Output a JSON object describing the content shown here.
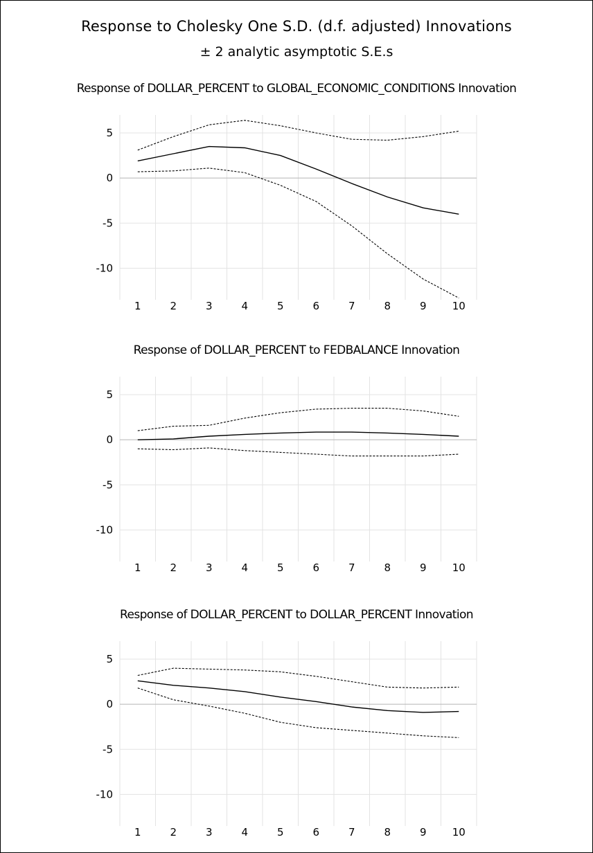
{
  "title": "Response to Cholesky One S.D. (d.f. adjusted) Innovations",
  "subtitle": "± 2 analytic asymptotic S.E.s",
  "chart_data": [
    {
      "type": "line",
      "title": "Response of DOLLAR_PERCENT to GLOBAL_ECONOMIC_CONDITIONS Innovation",
      "x": [
        1,
        2,
        3,
        4,
        5,
        6,
        7,
        8,
        9,
        10
      ],
      "ylim": [
        -13.5,
        7
      ],
      "yticks": [
        5,
        0,
        -5,
        -10
      ],
      "grid": true,
      "series": [
        {
          "values": [
            1.9,
            2.7,
            3.5,
            3.35,
            2.5,
            1.0,
            -0.6,
            -2.1,
            -3.3,
            -4.0
          ]
        },
        {
          "values": [
            3.1,
            4.6,
            5.9,
            6.4,
            5.8,
            5.0,
            4.3,
            4.2,
            4.6,
            5.2
          ]
        },
        {
          "values": [
            0.7,
            0.8,
            1.1,
            0.6,
            -0.8,
            -2.6,
            -5.3,
            -8.4,
            -11.2,
            -13.3
          ]
        }
      ]
    },
    {
      "type": "line",
      "title": "Response of DOLLAR_PERCENT to FEDBALANCE Innovation",
      "x": [
        1,
        2,
        3,
        4,
        5,
        6,
        7,
        8,
        9,
        10
      ],
      "ylim": [
        -13.5,
        7
      ],
      "yticks": [
        5,
        0,
        -5,
        -10
      ],
      "grid": true,
      "series": [
        {
          "values": [
            0.0,
            0.1,
            0.4,
            0.6,
            0.75,
            0.85,
            0.85,
            0.75,
            0.6,
            0.4
          ]
        },
        {
          "values": [
            1.0,
            1.5,
            1.6,
            2.4,
            3.0,
            3.4,
            3.5,
            3.5,
            3.2,
            2.6
          ]
        },
        {
          "values": [
            -1.0,
            -1.1,
            -0.9,
            -1.2,
            -1.4,
            -1.6,
            -1.8,
            -1.8,
            -1.8,
            -1.6
          ]
        }
      ]
    },
    {
      "type": "line",
      "title": "Response of DOLLAR_PERCENT to DOLLAR_PERCENT Innovation",
      "x": [
        1,
        2,
        3,
        4,
        5,
        6,
        7,
        8,
        9,
        10
      ],
      "ylim": [
        -13.5,
        7
      ],
      "yticks": [
        5,
        0,
        -5,
        -10
      ],
      "grid": true,
      "series": [
        {
          "values": [
            2.6,
            2.1,
            1.8,
            1.4,
            0.8,
            0.3,
            -0.3,
            -0.7,
            -0.9,
            -0.8
          ]
        },
        {
          "values": [
            3.2,
            4.0,
            3.9,
            3.8,
            3.6,
            3.1,
            2.5,
            1.9,
            1.8,
            1.9
          ]
        },
        {
          "values": [
            1.8,
            0.5,
            -0.2,
            -1.0,
            -2.0,
            -2.6,
            -2.9,
            -3.2,
            -3.5,
            -3.7
          ]
        }
      ]
    }
  ]
}
